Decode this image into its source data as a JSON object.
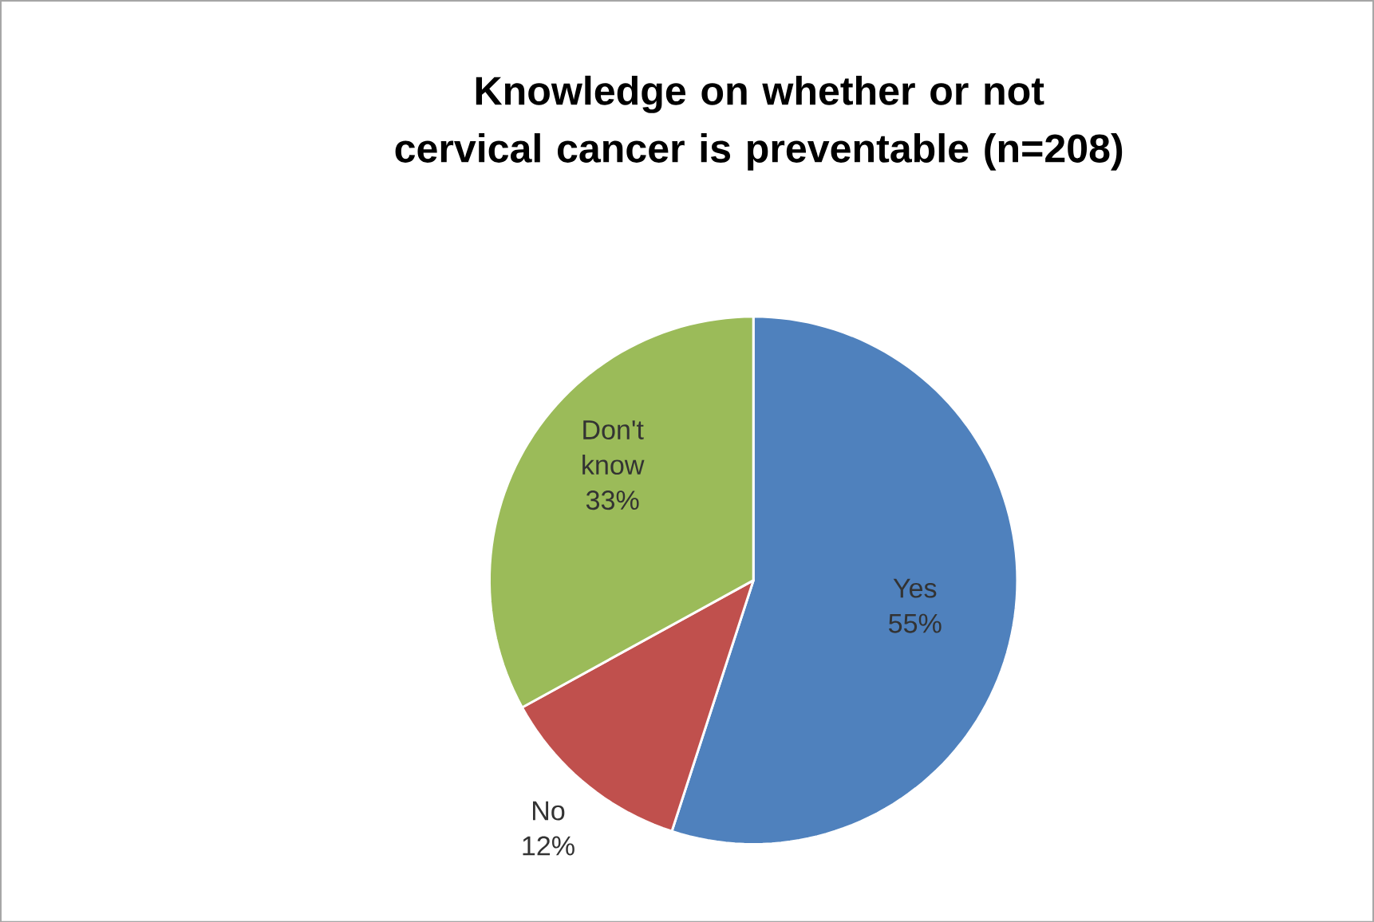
{
  "chart_data": {
    "type": "pie",
    "title": "Knowledge on whether or not cervical cancer is preventable (n=208)",
    "categories": [
      "Yes",
      "No",
      "Don't know"
    ],
    "values": [
      55,
      12,
      33
    ],
    "value_labels": [
      "55%",
      "12%",
      "33%"
    ],
    "colors": [
      "#4f81bd",
      "#c0504d",
      "#9bbb59"
    ]
  }
}
